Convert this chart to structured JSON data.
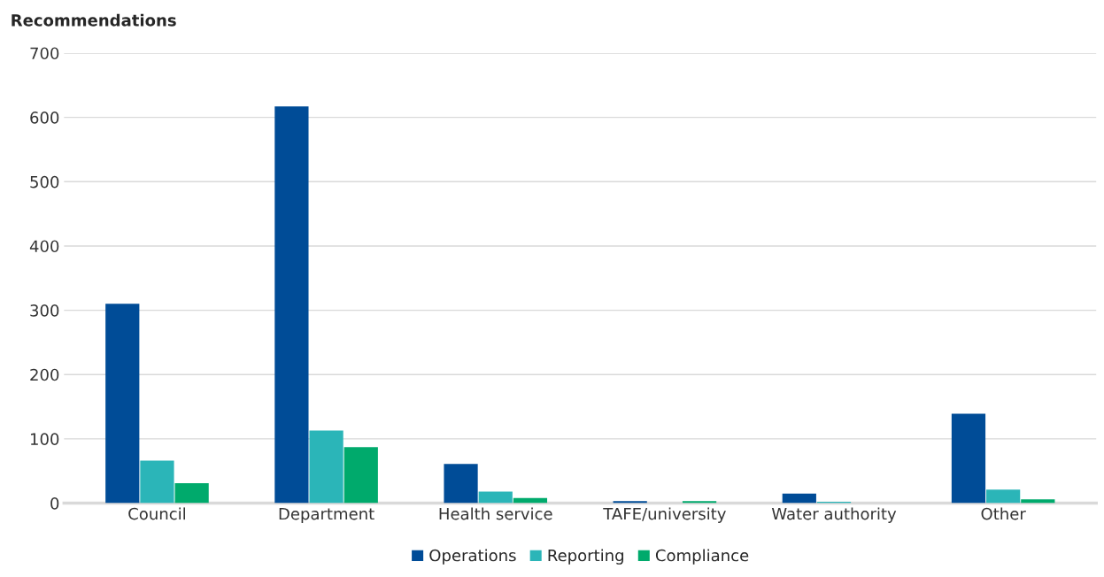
{
  "chart_data": {
    "type": "bar",
    "title": "Recommendations",
    "categories": [
      "Council",
      "Department",
      "Health service",
      "TAFE/university",
      "Water authority",
      "Other"
    ],
    "series": [
      {
        "name": "Operations",
        "color": "#004c97",
        "values": [
          310,
          617,
          61,
          3,
          15,
          139
        ]
      },
      {
        "name": "Reporting",
        "color": "#2bb5b8",
        "values": [
          66,
          113,
          18,
          0,
          2,
          21
        ]
      },
      {
        "name": "Compliance",
        "color": "#00aa6c",
        "values": [
          31,
          87,
          8,
          3,
          0,
          6
        ]
      }
    ],
    "ylim": [
      0,
      700
    ],
    "yticks": [
      0,
      100,
      200,
      300,
      400,
      500,
      600,
      700
    ],
    "grid": "y",
    "legend": "bottom"
  }
}
